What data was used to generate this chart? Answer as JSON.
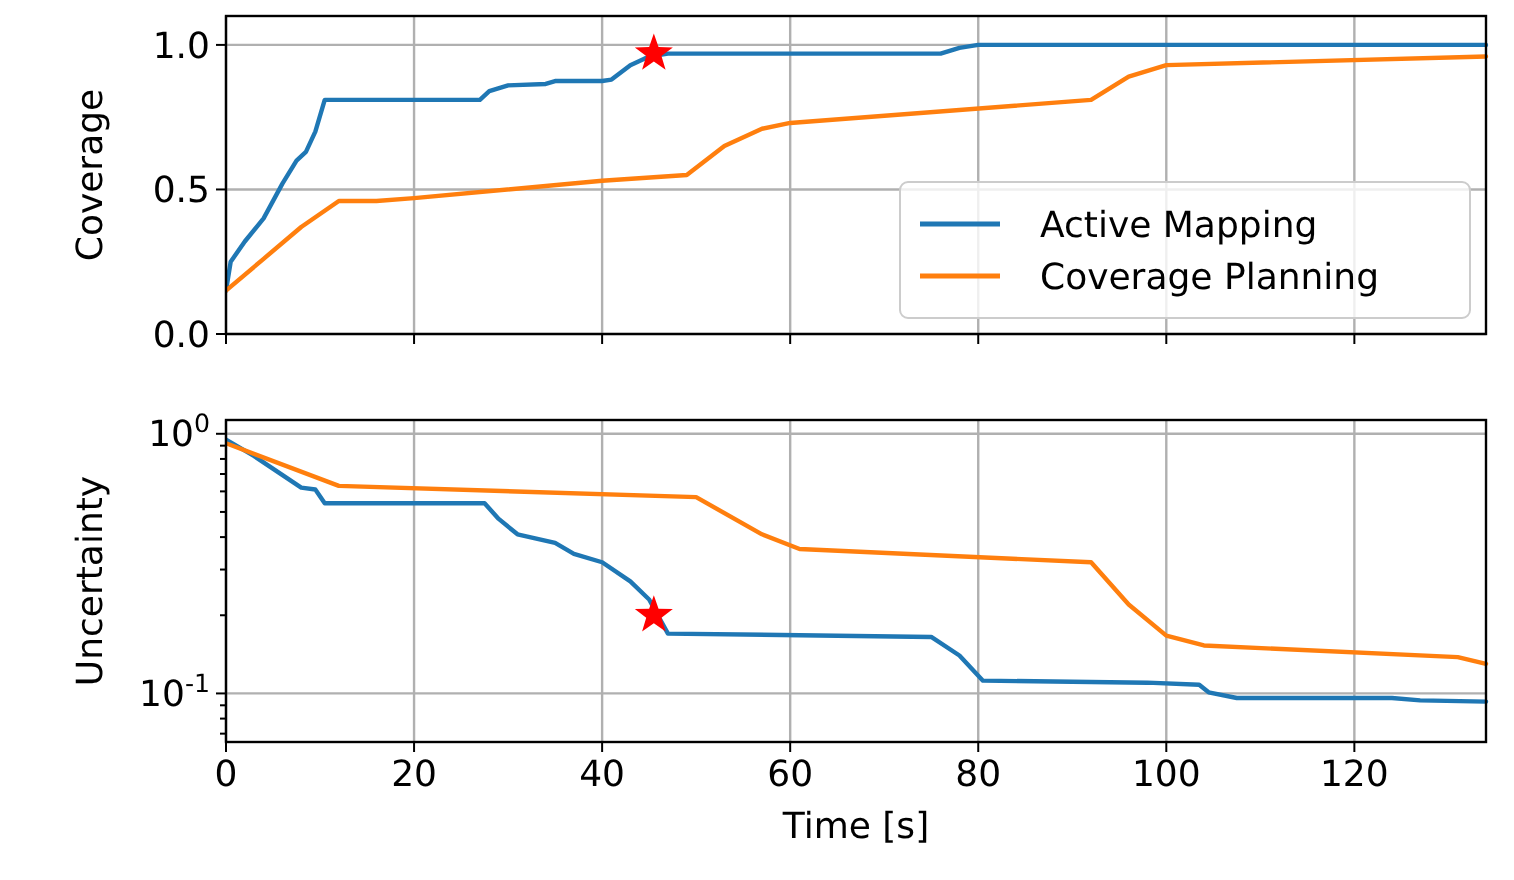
{
  "chart_data": [
    {
      "type": "line",
      "ylabel": "Coverage",
      "xlim": [
        0,
        134
      ],
      "xticks": [
        0,
        20,
        40,
        60,
        80,
        100,
        120
      ],
      "ylim": [
        0,
        1.1
      ],
      "yticks": [
        {
          "value": 0,
          "label": "0.0"
        },
        0.5,
        {
          "value": 1,
          "label": "1.0"
        }
      ],
      "grid": true,
      "legend": "bottom right",
      "tick_labels": "y",
      "series": [
        {
          "name": "Active Mapping",
          "color": "#1f77b4",
          "x": [
            0,
            0.5,
            2,
            4,
            6,
            7.5,
            8.5,
            9.5,
            10.5,
            27,
            28,
            30,
            34,
            35,
            40,
            41,
            43,
            45,
            47,
            76,
            78,
            80,
            134
          ],
          "values": [
            0.15,
            0.25,
            0.32,
            0.4,
            0.52,
            0.6,
            0.63,
            0.7,
            0.81,
            0.81,
            0.84,
            0.86,
            0.865,
            0.875,
            0.875,
            0.88,
            0.93,
            0.96,
            0.97,
            0.97,
            0.99,
            1.0,
            1.0
          ]
        },
        {
          "name": "Coverage Planning",
          "color": "#ff7f0e",
          "x": [
            0,
            4,
            8,
            12,
            16,
            20,
            40,
            49,
            53,
            57,
            60,
            92,
            96,
            100,
            134
          ],
          "values": [
            0.15,
            0.26,
            0.37,
            0.46,
            0.46,
            0.47,
            0.53,
            0.55,
            0.65,
            0.71,
            0.73,
            0.81,
            0.89,
            0.93,
            0.96
          ]
        },
        {
          "type": "scatter",
          "marker": "star",
          "color": "#ff0000",
          "x": [
            45.5
          ],
          "values": [
            0.97
          ]
        }
      ]
    },
    {
      "type": "line",
      "ylabel": "Uncertainty",
      "xlabel": "Time [s]",
      "xlim": [
        0,
        134
      ],
      "xticks": [
        0,
        20,
        40,
        60,
        80,
        100,
        120
      ],
      "ylim": [
        0.065,
        1.13
      ],
      "log": true,
      "yticks": [
        {
          "value": 0.07,
          "label": null
        },
        {
          "value": 0.08,
          "label": null
        },
        {
          "value": 0.09,
          "label": null
        },
        {
          "value": 0.1,
          "label": "10$^{-1}$"
        },
        {
          "value": 0.2,
          "label": null
        },
        {
          "value": 0.3,
          "label": null
        },
        {
          "value": 0.4,
          "label": null
        },
        {
          "value": 0.5,
          "label": null
        },
        {
          "value": 0.6,
          "label": null
        },
        {
          "value": 0.7,
          "label": null
        },
        {
          "value": 0.8,
          "label": null
        },
        {
          "value": 0.9,
          "label": null
        },
        {
          "value": 1,
          "label": "10$^{0}$"
        }
      ],
      "grid": true,
      "series": [
        {
          "color": "#1f77b4",
          "x": [
            0,
            3,
            8,
            9.5,
            10.5,
            27.5,
            29,
            31,
            35,
            37,
            40,
            43,
            45,
            47,
            75,
            78,
            80.5,
            98,
            103.5,
            104.5,
            107.5,
            124,
            127,
            134
          ],
          "values": [
            0.95,
            0.82,
            0.62,
            0.61,
            0.54,
            0.54,
            0.47,
            0.41,
            0.38,
            0.345,
            0.32,
            0.27,
            0.23,
            0.17,
            0.165,
            0.14,
            0.112,
            0.11,
            0.108,
            0.101,
            0.096,
            0.096,
            0.094,
            0.093
          ]
        },
        {
          "color": "#ff7f0e",
          "x": [
            0,
            12,
            50,
            57,
            61,
            92,
            96,
            100,
            104,
            131,
            134
          ],
          "values": [
            0.92,
            0.63,
            0.57,
            0.41,
            0.36,
            0.32,
            0.22,
            0.167,
            0.153,
            0.138,
            0.13
          ]
        },
        {
          "type": "scatter",
          "marker": "star",
          "color": "#ff0000",
          "x": [
            45.5
          ],
          "values": [
            0.2
          ]
        }
      ]
    }
  ]
}
